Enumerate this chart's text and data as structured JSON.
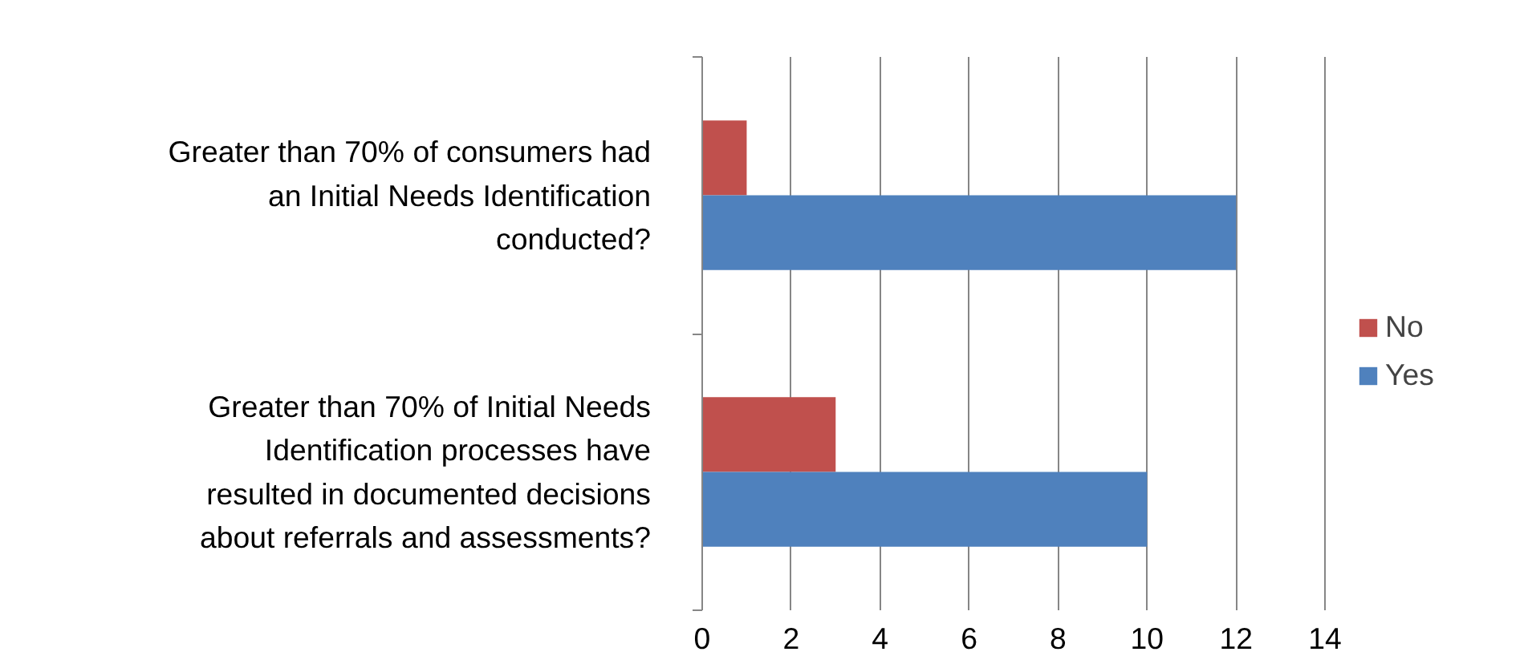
{
  "chart_data": {
    "type": "bar",
    "orientation": "horizontal",
    "categories": [
      "Greater than 70% of consumers had an Initial Needs Identification conducted?",
      "Greater than 70% of Initial Needs Identification processes have resulted in documented decisions about referrals and assessments?"
    ],
    "series": [
      {
        "name": "No",
        "color": "#c0504d",
        "values": [
          1,
          3
        ]
      },
      {
        "name": "Yes",
        "color": "#4f81bd",
        "values": [
          12,
          10
        ]
      }
    ],
    "xlim": [
      0,
      14
    ],
    "xticks": [
      0,
      2,
      4,
      6,
      8,
      10,
      12,
      14
    ],
    "grid": "x",
    "legend": "right"
  }
}
